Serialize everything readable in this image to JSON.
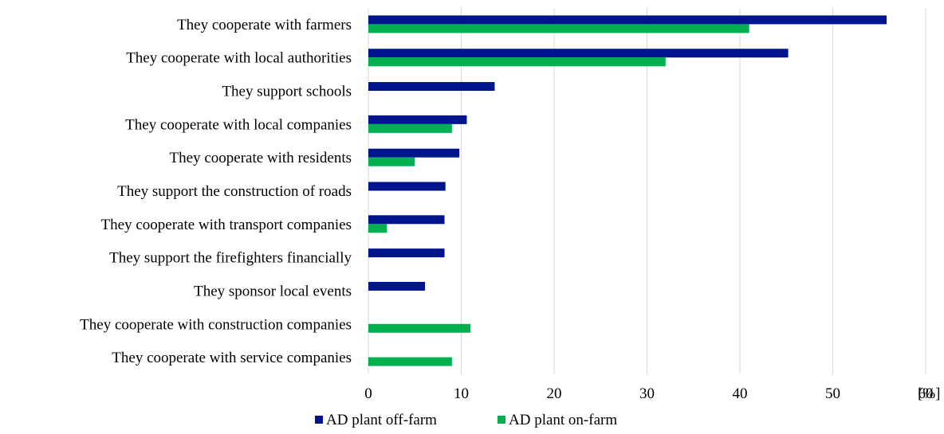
{
  "chart_data": {
    "type": "bar",
    "orientation": "horizontal",
    "categories": [
      "They cooperate with farmers",
      "They cooperate with local authorities",
      "They support schools",
      "They cooperate with local companies",
      "They cooperate with residents",
      "They support the construction of roads",
      "They cooperate with transport companies",
      "They support the firefighters financially",
      "They sponsor local events",
      "They cooperate with construction companies",
      "They cooperate with service companies"
    ],
    "series": [
      {
        "name": "AD plant off-farm",
        "color": "#00148c",
        "values": [
          55.8,
          45.2,
          13.6,
          10.6,
          9.8,
          8.3,
          8.2,
          8.2,
          6.1,
          0,
          0
        ]
      },
      {
        "name": "AD plant on-farm",
        "color": "#00b050",
        "values": [
          41.0,
          32.0,
          0,
          9.0,
          5.0,
          0,
          2.0,
          0,
          0,
          11.0,
          9.0
        ]
      }
    ],
    "xlim": [
      0,
      60
    ],
    "xticks": [
      "0",
      "10",
      "20",
      "30",
      "40",
      "50",
      "60"
    ],
    "xlabel": "[%]",
    "grid": true,
    "legend_position": "bottom"
  }
}
